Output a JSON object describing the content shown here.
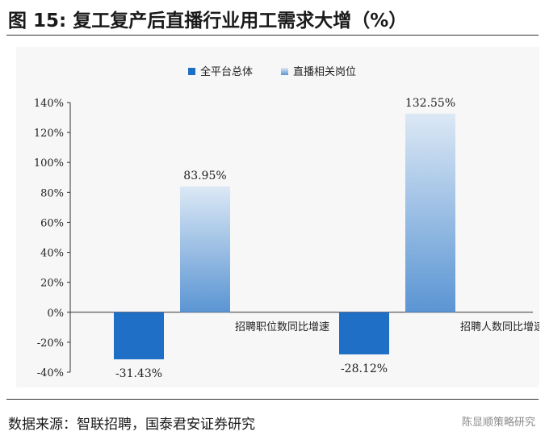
{
  "header": {
    "title": "图 15: 复工复产后直播行业用工需求大增（%）"
  },
  "footer": {
    "source": "数据来源：智联招聘，国泰君安证券研究",
    "watermark": "陈显顺策略研究"
  },
  "colors": {
    "series1": "#1f6fc6",
    "series2_top": "#dce8f5",
    "series2_bottom": "#5a95d3",
    "axis": "#333333"
  },
  "chart_data": {
    "type": "bar",
    "title": "",
    "xlabel": "",
    "ylabel": "",
    "categories": [
      "招聘职位数同比增速",
      "招聘人数同比增速"
    ],
    "series": [
      {
        "name": "全平台总体",
        "values": [
          -31.43,
          -28.12
        ],
        "labels": [
          "-31.43%",
          "-28.12%"
        ]
      },
      {
        "name": "直播相关岗位",
        "values": [
          83.95,
          132.55
        ],
        "labels": [
          "83.95%",
          "132.55%"
        ]
      }
    ],
    "ylim": [
      -40,
      140
    ],
    "yticks": [
      -40,
      -20,
      0,
      20,
      40,
      60,
      80,
      100,
      120,
      140
    ],
    "ytick_labels": [
      "-40%",
      "-20%",
      "0%",
      "20%",
      "40%",
      "60%",
      "80%",
      "100%",
      "120%",
      "140%"
    ],
    "grid": false,
    "legend": "top-center"
  }
}
